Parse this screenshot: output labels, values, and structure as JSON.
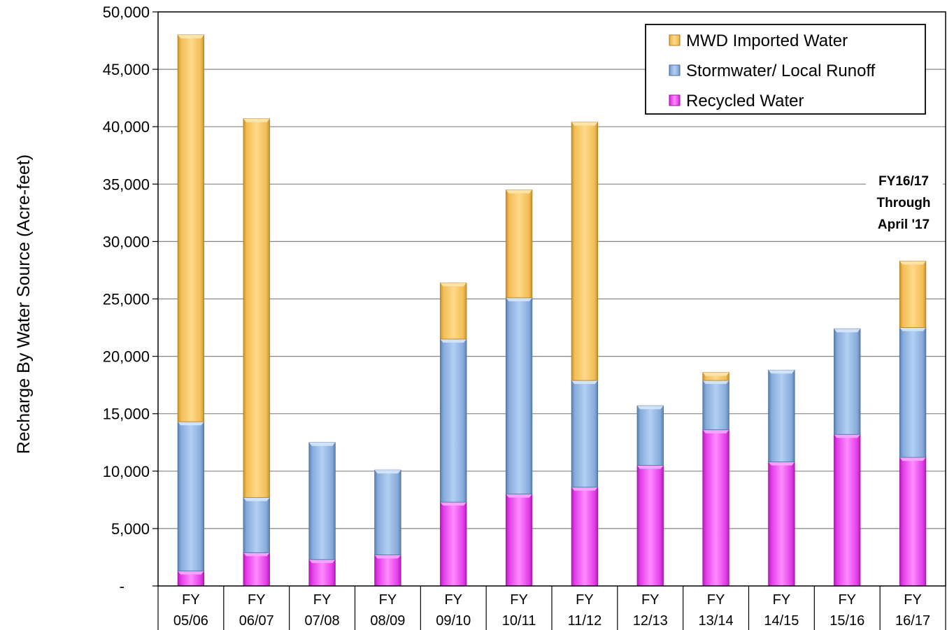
{
  "chart_data": {
    "type": "bar",
    "stacked": true,
    "title": "",
    "xlabel": "",
    "ylabel": "Recharge By Water Source (Acre-feet)",
    "ylim": [
      0,
      50000
    ],
    "yticks": [
      "-",
      "5,000",
      "10,000",
      "15,000",
      "20,000",
      "25,000",
      "30,000",
      "35,000",
      "40,000",
      "45,000",
      "50,000"
    ],
    "categories": [
      [
        "FY",
        "05/06"
      ],
      [
        "FY",
        "06/07"
      ],
      [
        "FY",
        "07/08"
      ],
      [
        "FY",
        "08/09"
      ],
      [
        "FY",
        "09/10"
      ],
      [
        "FY",
        "10/11"
      ],
      [
        "FY",
        "11/12"
      ],
      [
        "FY",
        "12/13"
      ],
      [
        "FY",
        "13/14"
      ],
      [
        "FY",
        "14/15"
      ],
      [
        "FY",
        "15/16"
      ],
      [
        "FY",
        "16/17"
      ]
    ],
    "series": [
      {
        "name": "Recycled Water",
        "color": "#e040e8",
        "values": [
          1300,
          2900,
          2300,
          2700,
          7300,
          8000,
          8600,
          10500,
          13600,
          10800,
          13200,
          11200
        ]
      },
      {
        "name": "Stormwater/ Local Runoff",
        "color": "#8db3e2",
        "values": [
          13000,
          4800,
          10200,
          7400,
          14200,
          17100,
          9300,
          5200,
          4300,
          8000,
          9200,
          11300
        ]
      },
      {
        "name": "MWD Imported Water",
        "color": "#f5c35a",
        "values": [
          33700,
          33000,
          0,
          0,
          4900,
          9400,
          22500,
          0,
          700,
          0,
          0,
          5800
        ]
      }
    ],
    "legend": {
      "position": "top-right",
      "entries": [
        "MWD Imported Water",
        "Stormwater/ Local Runoff",
        "Recycled Water"
      ]
    },
    "annotation": [
      "FY16/17",
      "Through",
      "April '17"
    ],
    "grid": true
  }
}
